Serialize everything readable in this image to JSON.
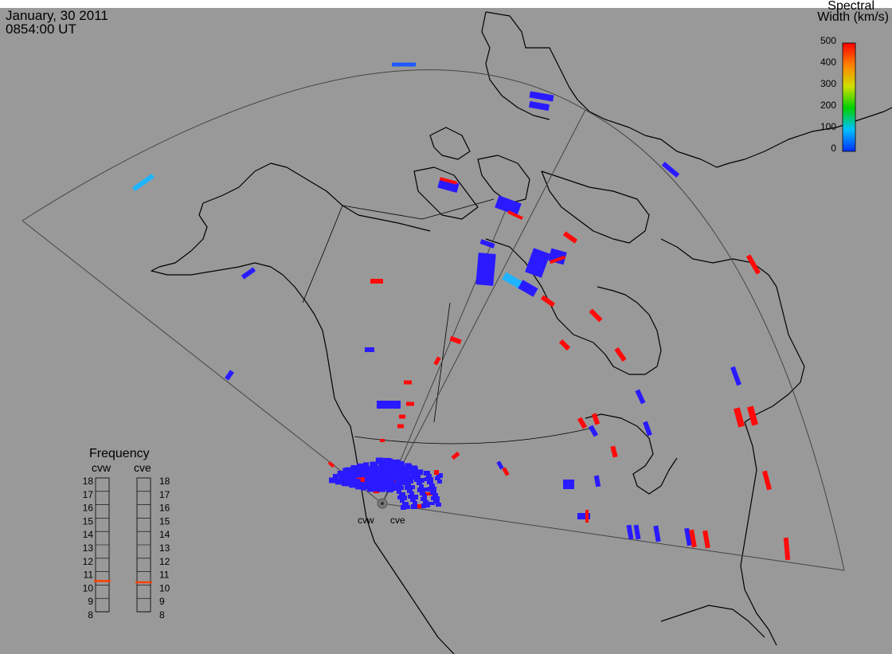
{
  "header": {
    "date": "January, 30 2011",
    "time": "0854:00 UT"
  },
  "colorbar": {
    "title_line1": "Spectral",
    "title_line2": "Width (km/s)",
    "ticks": [
      "500",
      "400",
      "300",
      "200",
      "100",
      "0"
    ],
    "colors": [
      "#ff0000",
      "#ff8000",
      "#ffff00",
      "#00dd00",
      "#00dddd",
      "#0040ff"
    ]
  },
  "frequency": {
    "title": "Frequency",
    "radar1": "cvw",
    "radar2": "cve",
    "levels": [
      "18",
      "17",
      "16",
      "15",
      "14",
      "13",
      "12",
      "11",
      "10",
      "9",
      "8"
    ],
    "cvw_value": 10.8,
    "cve_value": 10.7,
    "marker_color": "#ff4000"
  },
  "radars": {
    "site1": "cvw",
    "site2": "cve"
  },
  "map": {
    "background": "#999999",
    "coastline_color": "#000000",
    "fov_color": "#444444",
    "scatter_blue": "#2a1aff",
    "scatter_red": "#ff0a0a",
    "scatter_cyan": "#1eb4ff"
  }
}
